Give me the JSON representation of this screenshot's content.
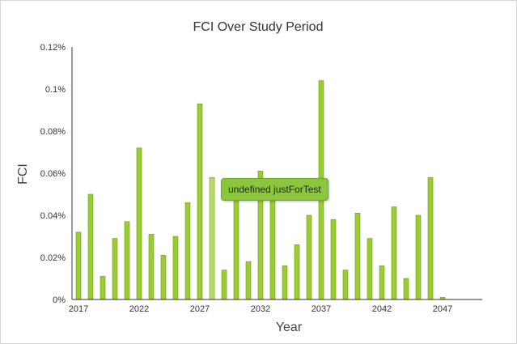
{
  "chart_data": {
    "type": "bar",
    "title": "FCI Over Study Period",
    "xlabel": "Year",
    "ylabel": "FCI",
    "x": [
      2017,
      2018,
      2019,
      2020,
      2021,
      2022,
      2023,
      2024,
      2025,
      2026,
      2027,
      2028,
      2029,
      2030,
      2031,
      2032,
      2033,
      2034,
      2035,
      2036,
      2037,
      2038,
      2039,
      2040,
      2041,
      2042,
      2043,
      2044,
      2045,
      2046,
      2047
    ],
    "values": [
      0.032,
      0.05,
      0.011,
      0.029,
      0.037,
      0.072,
      0.031,
      0.021,
      0.03,
      0.046,
      0.093,
      0.058,
      0.014,
      0.049,
      0.018,
      0.061,
      0.047,
      0.016,
      0.026,
      0.04,
      0.104,
      0.038,
      0.014,
      0.041,
      0.029,
      0.016,
      0.044,
      0.01,
      0.04,
      0.058,
      0.001
    ],
    "xticks": [
      "2017",
      "2022",
      "2027",
      "2032",
      "2037",
      "2042",
      "2047"
    ],
    "yticks": [
      "0%",
      "0.02%",
      "0.04%",
      "0.06%",
      "0.08%",
      "0.1%",
      "0.12%"
    ],
    "ylim": [
      0,
      0.12
    ],
    "xlim": [
      2017,
      2050
    ],
    "grid": false,
    "legend": "none",
    "highlighted_index": 11,
    "colors": {
      "bar": "#9acd32",
      "bar_edge": "#6e9a1f",
      "bar_highlight": "#b5dd63",
      "axis": "#333333"
    },
    "tooltip": {
      "text": "undefined justForTest"
    }
  }
}
